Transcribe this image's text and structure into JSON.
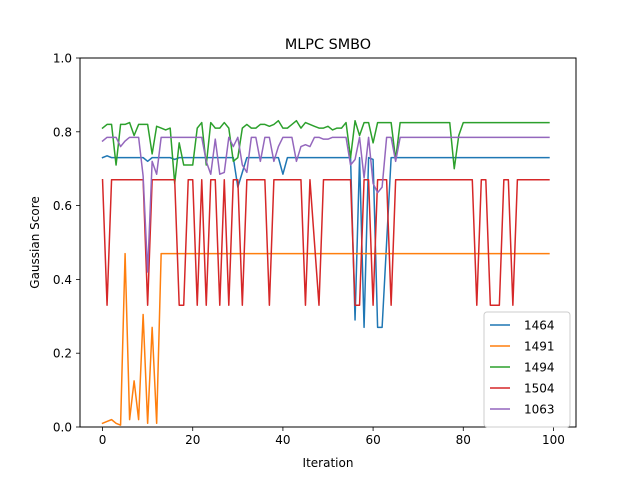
{
  "chart_data": {
    "type": "line",
    "title": "MLPC SMBO",
    "xlabel": "Iteration",
    "ylabel": "Gaussian Score",
    "xlim": [
      -5,
      105
    ],
    "ylim": [
      0,
      1
    ],
    "xticks": [
      0,
      20,
      40,
      60,
      80,
      100
    ],
    "yticks": [
      0.0,
      0.2,
      0.4,
      0.6,
      0.8,
      1.0
    ],
    "xtick_labels": [
      "0",
      "20",
      "40",
      "60",
      "80",
      "100"
    ],
    "ytick_labels": [
      "0.0",
      "0.2",
      "0.4",
      "0.6",
      "0.8",
      "1.0"
    ],
    "grid": false,
    "legend_position": "lower-right",
    "series": [
      {
        "name": "1464",
        "color": "#1f77b4",
        "points": [
          [
            0,
            0.73
          ],
          [
            1,
            0.735
          ],
          [
            2,
            0.73
          ],
          [
            9,
            0.73
          ],
          [
            10,
            0.72
          ],
          [
            11,
            0.73
          ],
          [
            15,
            0.73
          ],
          [
            16,
            0.725
          ],
          [
            17,
            0.73
          ],
          [
            29,
            0.73
          ],
          [
            30,
            0.65
          ],
          [
            31,
            0.69
          ],
          [
            32,
            0.73
          ],
          [
            39,
            0.73
          ],
          [
            40,
            0.685
          ],
          [
            41,
            0.73
          ],
          [
            55,
            0.73
          ],
          [
            56,
            0.29
          ],
          [
            57,
            0.73
          ],
          [
            58,
            0.27
          ],
          [
            59,
            0.73
          ],
          [
            60,
            0.725
          ],
          [
            61,
            0.27
          ],
          [
            62,
            0.27
          ],
          [
            63,
            0.5
          ],
          [
            64,
            0.73
          ],
          [
            99,
            0.73
          ]
        ]
      },
      {
        "name": "1491",
        "color": "#ff7f0e",
        "points": [
          [
            0,
            0.01
          ],
          [
            1,
            0.015
          ],
          [
            2,
            0.02
          ],
          [
            3,
            0.01
          ],
          [
            4,
            0.005
          ],
          [
            5,
            0.47
          ],
          [
            6,
            0.02
          ],
          [
            7,
            0.125
          ],
          [
            8,
            0.02
          ],
          [
            9,
            0.305
          ],
          [
            10,
            0.01
          ],
          [
            11,
            0.27
          ],
          [
            12,
            0.01
          ],
          [
            13,
            0.47
          ],
          [
            99,
            0.47
          ]
        ]
      },
      {
        "name": "1494",
        "color": "#2ca02c",
        "points": [
          [
            0,
            0.81
          ],
          [
            1,
            0.82
          ],
          [
            2,
            0.82
          ],
          [
            3,
            0.71
          ],
          [
            4,
            0.82
          ],
          [
            5,
            0.82
          ],
          [
            6,
            0.825
          ],
          [
            7,
            0.79
          ],
          [
            8,
            0.82
          ],
          [
            9,
            0.82
          ],
          [
            10,
            0.82
          ],
          [
            11,
            0.74
          ],
          [
            12,
            0.815
          ],
          [
            13,
            0.81
          ],
          [
            14,
            0.805
          ],
          [
            15,
            0.81
          ],
          [
            16,
            0.66
          ],
          [
            17,
            0.77
          ],
          [
            18,
            0.71
          ],
          [
            19,
            0.71
          ],
          [
            20,
            0.71
          ],
          [
            21,
            0.81
          ],
          [
            22,
            0.825
          ],
          [
            23,
            0.71
          ],
          [
            24,
            0.825
          ],
          [
            25,
            0.81
          ],
          [
            26,
            0.81
          ],
          [
            27,
            0.825
          ],
          [
            28,
            0.81
          ],
          [
            29,
            0.72
          ],
          [
            30,
            0.73
          ],
          [
            31,
            0.81
          ],
          [
            32,
            0.82
          ],
          [
            33,
            0.81
          ],
          [
            34,
            0.81
          ],
          [
            35,
            0.82
          ],
          [
            36,
            0.82
          ],
          [
            37,
            0.815
          ],
          [
            38,
            0.82
          ],
          [
            39,
            0.83
          ],
          [
            40,
            0.81
          ],
          [
            41,
            0.81
          ],
          [
            42,
            0.82
          ],
          [
            43,
            0.83
          ],
          [
            44,
            0.81
          ],
          [
            45,
            0.825
          ],
          [
            46,
            0.82
          ],
          [
            47,
            0.815
          ],
          [
            48,
            0.81
          ],
          [
            49,
            0.81
          ],
          [
            50,
            0.815
          ],
          [
            51,
            0.805
          ],
          [
            52,
            0.81
          ],
          [
            53,
            0.81
          ],
          [
            54,
            0.825
          ],
          [
            55,
            0.73
          ],
          [
            56,
            0.83
          ],
          [
            57,
            0.79
          ],
          [
            58,
            0.825
          ],
          [
            59,
            0.825
          ],
          [
            60,
            0.77
          ],
          [
            61,
            0.825
          ],
          [
            62,
            0.825
          ],
          [
            63,
            0.825
          ],
          [
            64,
            0.825
          ],
          [
            65,
            0.725
          ],
          [
            66,
            0.825
          ],
          [
            77,
            0.825
          ],
          [
            78,
            0.7
          ],
          [
            79,
            0.79
          ],
          [
            80,
            0.825
          ],
          [
            99,
            0.825
          ]
        ]
      },
      {
        "name": "1504",
        "color": "#d62728",
        "points": [
          [
            0,
            0.67
          ],
          [
            1,
            0.33
          ],
          [
            2,
            0.67
          ],
          [
            9,
            0.67
          ],
          [
            10,
            0.33
          ],
          [
            11,
            0.67
          ],
          [
            16,
            0.67
          ],
          [
            17,
            0.33
          ],
          [
            18,
            0.33
          ],
          [
            19,
            0.67
          ],
          [
            20,
            0.67
          ],
          [
            21,
            0.33
          ],
          [
            22,
            0.67
          ],
          [
            23,
            0.33
          ],
          [
            24,
            0.67
          ],
          [
            25,
            0.67
          ],
          [
            26,
            0.33
          ],
          [
            27,
            0.67
          ],
          [
            28,
            0.33
          ],
          [
            29,
            0.67
          ],
          [
            30,
            0.67
          ],
          [
            31,
            0.33
          ],
          [
            32,
            0.67
          ],
          [
            36,
            0.67
          ],
          [
            37,
            0.33
          ],
          [
            38,
            0.67
          ],
          [
            44,
            0.67
          ],
          [
            45,
            0.33
          ],
          [
            46,
            0.67
          ],
          [
            48,
            0.33
          ],
          [
            49,
            0.67
          ],
          [
            55,
            0.67
          ],
          [
            56,
            0.33
          ],
          [
            57,
            0.33
          ],
          [
            58,
            0.67
          ],
          [
            59,
            0.67
          ],
          [
            60,
            0.33
          ],
          [
            61,
            0.67
          ],
          [
            63,
            0.67
          ],
          [
            64,
            0.33
          ],
          [
            65,
            0.67
          ],
          [
            82,
            0.67
          ],
          [
            83,
            0.33
          ],
          [
            84,
            0.67
          ],
          [
            85,
            0.67
          ],
          [
            86,
            0.33
          ],
          [
            87,
            0.33
          ],
          [
            88,
            0.33
          ],
          [
            89,
            0.67
          ],
          [
            90,
            0.67
          ],
          [
            91,
            0.33
          ],
          [
            92,
            0.67
          ],
          [
            99,
            0.67
          ]
        ]
      },
      {
        "name": "1063",
        "color": "#9467bd",
        "points": [
          [
            0,
            0.775
          ],
          [
            1,
            0.785
          ],
          [
            2,
            0.785
          ],
          [
            3,
            0.785
          ],
          [
            4,
            0.76
          ],
          [
            5,
            0.775
          ],
          [
            6,
            0.785
          ],
          [
            8,
            0.785
          ],
          [
            9,
            0.68
          ],
          [
            10,
            0.42
          ],
          [
            11,
            0.72
          ],
          [
            12,
            0.685
          ],
          [
            13,
            0.785
          ],
          [
            22,
            0.785
          ],
          [
            23,
            0.72
          ],
          [
            24,
            0.685
          ],
          [
            25,
            0.78
          ],
          [
            26,
            0.685
          ],
          [
            27,
            0.69
          ],
          [
            28,
            0.785
          ],
          [
            29,
            0.76
          ],
          [
            30,
            0.785
          ],
          [
            31,
            0.71
          ],
          [
            32,
            0.69
          ],
          [
            33,
            0.785
          ],
          [
            34,
            0.785
          ],
          [
            35,
            0.72
          ],
          [
            36,
            0.785
          ],
          [
            37,
            0.785
          ],
          [
            38,
            0.72
          ],
          [
            39,
            0.76
          ],
          [
            40,
            0.785
          ],
          [
            41,
            0.785
          ],
          [
            42,
            0.785
          ],
          [
            43,
            0.72
          ],
          [
            44,
            0.76
          ],
          [
            45,
            0.765
          ],
          [
            46,
            0.76
          ],
          [
            47,
            0.785
          ],
          [
            48,
            0.785
          ],
          [
            49,
            0.78
          ],
          [
            50,
            0.78
          ],
          [
            51,
            0.785
          ],
          [
            54,
            0.785
          ],
          [
            55,
            0.71
          ],
          [
            56,
            0.725
          ],
          [
            57,
            0.785
          ],
          [
            58,
            0.675
          ],
          [
            59,
            0.785
          ],
          [
            60,
            0.66
          ],
          [
            61,
            0.635
          ],
          [
            62,
            0.65
          ],
          [
            63,
            0.785
          ],
          [
            64,
            0.785
          ],
          [
            65,
            0.72
          ],
          [
            66,
            0.785
          ],
          [
            67,
            0.785
          ],
          [
            99,
            0.785
          ]
        ]
      }
    ]
  }
}
